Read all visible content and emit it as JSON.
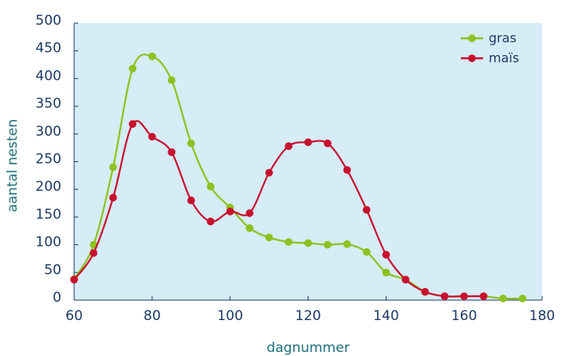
{
  "chart_data": {
    "type": "line",
    "title": "",
    "xlabel": "dagnummer",
    "ylabel": "aantal nesten",
    "xlim": [
      60,
      180
    ],
    "ylim": [
      0,
      500
    ],
    "xticks": [
      60,
      80,
      100,
      120,
      140,
      160,
      180
    ],
    "yticks": [
      0,
      50,
      100,
      150,
      200,
      250,
      300,
      350,
      400,
      450,
      500
    ],
    "grid": false,
    "legend_position": "top-right",
    "plot_background": "#d6ecf7",
    "series": [
      {
        "name": "gras",
        "color": "#8cc21f",
        "x": [
          60,
          65,
          70,
          75,
          80,
          85,
          90,
          95,
          100,
          105,
          110,
          115,
          120,
          125,
          130,
          135,
          140,
          145,
          150,
          155,
          160,
          165,
          170,
          175
        ],
        "y": [
          38,
          100,
          240,
          418,
          440,
          397,
          283,
          205,
          167,
          130,
          113,
          105,
          103,
          100,
          101,
          87,
          50,
          37,
          15,
          7,
          7,
          7,
          3,
          3
        ]
      },
      {
        "name": "maïs",
        "color": "#c8102e",
        "x": [
          60,
          65,
          70,
          75,
          80,
          85,
          90,
          95,
          100,
          105,
          110,
          115,
          120,
          125,
          130,
          135,
          140,
          145,
          150,
          155,
          160,
          165
        ],
        "y": [
          37,
          85,
          185,
          318,
          295,
          267,
          180,
          142,
          160,
          157,
          230,
          278,
          285,
          283,
          235,
          163,
          82,
          37,
          15,
          7,
          7,
          7
        ]
      }
    ]
  }
}
